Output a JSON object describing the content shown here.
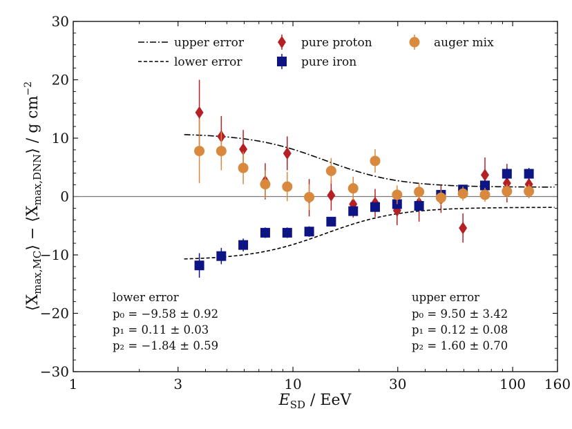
{
  "chart_data": {
    "type": "scatter",
    "title": "",
    "xlabel": "E_SD / EeV",
    "ylabel": "⟨X_max,MC⟩ − ⟨X_max,DNN⟩ / g cm^-2",
    "xlabel_parts": {
      "main": "E",
      "sub": "SD",
      "rest": " / EeV"
    },
    "ylabel_parts": {
      "a_main": "⟨X",
      "a_sub": "max,MC",
      "mid": "⟩ − ⟨X",
      "b_sub": "max,DNN",
      "end": "⟩ / g cm",
      "sup": "−2"
    },
    "xscale": "log",
    "xlim": [
      1,
      160
    ],
    "ylim": [
      -30,
      30
    ],
    "xticks": [
      {
        "value": 1,
        "label": "1"
      },
      {
        "value": 3,
        "label": "3"
      },
      {
        "value": 10,
        "label": "10"
      },
      {
        "value": 30,
        "label": "30"
      },
      {
        "value": 100,
        "label": "100"
      },
      {
        "value": 160,
        "label": "160"
      }
    ],
    "yticks": [
      {
        "value": -30,
        "label": "−30"
      },
      {
        "value": -20,
        "label": "−20"
      },
      {
        "value": -10,
        "label": "−10"
      },
      {
        "value": 0,
        "label": "0"
      },
      {
        "value": 10,
        "label": "10"
      },
      {
        "value": 20,
        "label": "20"
      },
      {
        "value": 30,
        "label": "30"
      }
    ],
    "x_minor_ticks": [
      2,
      4,
      5,
      6,
      7,
      8,
      9,
      20,
      40,
      50,
      60,
      70,
      80,
      90
    ],
    "y_minor_step": 2,
    "zero_line": 0,
    "legend": [
      {
        "label": "upper error",
        "kind": "line",
        "dash": "dashdot",
        "color": "#000000"
      },
      {
        "label": "lower error",
        "kind": "line",
        "dash": "dashed",
        "color": "#000000"
      },
      {
        "label": "pure proton",
        "kind": "marker",
        "marker": "diamond",
        "color": "#b52024"
      },
      {
        "label": "pure iron",
        "kind": "marker",
        "marker": "square",
        "color": "#0d1585"
      },
      {
        "label": "auger mix",
        "kind": "marker",
        "marker": "circle",
        "color": "#d9893e"
      }
    ],
    "series": [
      {
        "name": "pure proton",
        "marker": "diamond",
        "color": "#b52024",
        "x": [
          3.75,
          4.72,
          5.94,
          7.48,
          9.42,
          11.86,
          14.93,
          18.8,
          23.66,
          29.79,
          37.5,
          47.2,
          59.4,
          74.8,
          94.2,
          118.6
        ],
        "y": [
          14.4,
          10.3,
          8.1,
          2.6,
          7.4,
          -0.2,
          0.2,
          -1.3,
          -1.1,
          -2.4,
          -1.1,
          -0.4,
          -5.4,
          3.7,
          2.3,
          2.1
        ],
        "err": [
          5.6,
          3.5,
          3.3,
          3.1,
          2.9,
          3.2,
          2.6,
          2.3,
          2.4,
          2.5,
          3.2,
          2.4,
          2.5,
          3.0,
          3.3,
          2.3
        ]
      },
      {
        "name": "pure iron",
        "marker": "square",
        "color": "#0d1585",
        "x": [
          3.75,
          4.72,
          5.94,
          7.48,
          9.42,
          11.86,
          14.93,
          18.8,
          23.66,
          29.79,
          37.5,
          47.2,
          59.4,
          74.8,
          94.2,
          118.6
        ],
        "y": [
          -11.8,
          -10.2,
          -8.3,
          -6.2,
          -6.2,
          -6.0,
          -4.3,
          -2.5,
          -1.8,
          -1.3,
          -1.6,
          0.3,
          1.2,
          1.9,
          3.9,
          3.9
        ],
        "err": [
          2.1,
          1.4,
          1.1,
          0.9,
          0.9,
          0.9,
          0.8,
          0.8,
          0.8,
          0.8,
          0.9,
          0.7,
          0.8,
          0.9,
          1.0,
          1.0
        ]
      },
      {
        "name": "auger mix",
        "marker": "circle",
        "color": "#d9893e",
        "x": [
          3.75,
          4.72,
          5.94,
          7.48,
          9.42,
          11.86,
          14.93,
          18.8,
          23.66,
          29.79,
          37.5,
          47.2,
          59.4,
          74.8,
          94.2,
          118.6
        ],
        "y": [
          7.8,
          7.8,
          4.9,
          2.1,
          1.7,
          -0.1,
          4.4,
          1.4,
          6.1,
          0.3,
          0.8,
          -0.2,
          0.5,
          0.3,
          0.9,
          0.9
        ],
        "err": [
          5.5,
          3.3,
          2.8,
          2.4,
          2.5,
          2.2,
          2.2,
          2.0,
          2.0,
          1.6,
          1.5,
          1.3,
          1.2,
          1.2,
          1.2,
          1.2
        ]
      }
    ],
    "fits": [
      {
        "name": "upper error",
        "dash": "dashdot",
        "x_range": [
          3.2,
          155
        ],
        "params": [
          9.5,
          0.12,
          1.6
        ]
      },
      {
        "name": "lower error",
        "dash": "dashed",
        "x_range": [
          3.2,
          155
        ],
        "params": [
          -9.58,
          0.11,
          -1.84
        ]
      }
    ],
    "annotations": [
      {
        "name": "lower error annotation",
        "lines": [
          "lower error",
          "p₀ = −9.58 ± 0.92",
          "p₁ = 0.11 ± 0.03",
          "p₂ = −1.84 ± 0.59"
        ]
      },
      {
        "name": "upper error annotation",
        "lines": [
          "upper error",
          "p₀ = 9.50 ± 3.42",
          "p₁ = 0.12 ± 0.08",
          "p₂ = 1.60 ± 0.70"
        ]
      }
    ]
  }
}
